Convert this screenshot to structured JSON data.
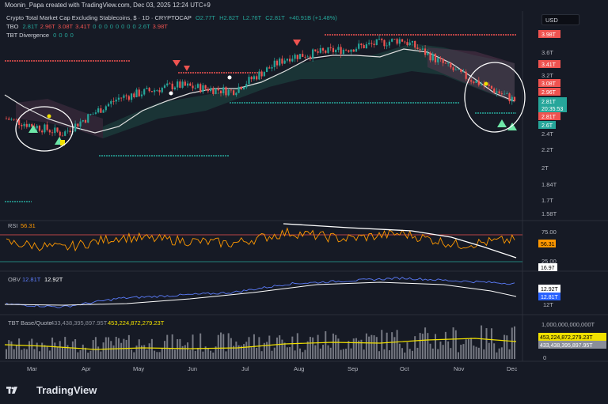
{
  "header": {
    "text": "Moonin_Papa created with TradingView.com, Dec 03, 2025 12:24 UTC+9"
  },
  "legend": {
    "title": "Crypto Total Market Cap Excluding Stablecoins, $ · 1D · CRYPTOCAP",
    "ohlc": [
      "O2.77T",
      "H2.82T",
      "L2.76T",
      "C2.81T"
    ],
    "change": "+40.91B (+1.48%)",
    "tbo_label": "TBO",
    "tbo_values": [
      "2.81T",
      "2.96T",
      "3.08T",
      "3.41T",
      "0",
      "0",
      "0",
      "0",
      "0",
      "0",
      "0",
      "0",
      "2.6T",
      "3.98T"
    ],
    "tbt_label": "TBT Divergence",
    "tbt_values": [
      "0",
      "0",
      "0",
      "0"
    ]
  },
  "currency": "USD",
  "price_axis": {
    "ticks": [
      "3.98T",
      "3.6T",
      "3.41T",
      "3.2T",
      "3.08T",
      "2.96T",
      "2.81T",
      "20:35:53",
      "2.81T",
      "2.6T",
      "2.4T",
      "2.2T",
      "2T",
      "1.84T",
      "1.7T",
      "1.58T"
    ]
  },
  "rsi": {
    "label": "RSI",
    "value": "56.31",
    "ticks": [
      "75.00",
      "56.31",
      "25.00",
      "16.97"
    ]
  },
  "obv": {
    "label": "OBV",
    "v1": "12.81T",
    "v2": "12.92T",
    "ticks": [
      "12.92T",
      "12.81T",
      "12T"
    ]
  },
  "tbt": {
    "label": "TBT Base/Quote",
    "v1": "433,438,395,897.95T",
    "v2": "453,224,872,279.23T",
    "ticks": [
      "1,000,000,000,000T",
      "453,224,872,279.23T",
      "433,438,395,897.95T",
      "0"
    ]
  },
  "months": [
    "Mar",
    "Apr",
    "May",
    "Jun",
    "Jul",
    "Aug",
    "Sep",
    "Oct",
    "Nov",
    "Dec"
  ],
  "brand": "TradingView",
  "colors": {
    "bg": "#161a25",
    "up": "#26a69a",
    "down": "#ef5350",
    "ma": "#ffffff",
    "rsi": "#ff9800",
    "obv": "#5b7cfa",
    "vol_ma": "#f0e000"
  },
  "chart_data": [
    {
      "type": "line",
      "name": "price",
      "title": "Crypto Total Market Cap Excluding Stablecoins",
      "ylabel": "",
      "ylim": [
        1.5,
        4.1
      ],
      "x": [
        "Mar",
        "Apr",
        "May",
        "Jun",
        "Jul",
        "Aug",
        "Sep",
        "Oct",
        "Nov",
        "Dec"
      ],
      "values": [
        2.55,
        2.35,
        2.85,
        3.05,
        2.95,
        3.55,
        3.7,
        3.9,
        3.25,
        2.81
      ]
    },
    {
      "type": "line",
      "name": "rsi",
      "ylim": [
        0,
        100
      ],
      "values": [
        50,
        38,
        62,
        55,
        48,
        72,
        58,
        70,
        45,
        56.31
      ]
    },
    {
      "type": "line",
      "name": "obv",
      "values": [
        12.1,
        12.0,
        12.3,
        12.4,
        12.5,
        12.8,
        12.9,
        13.0,
        12.9,
        12.81
      ]
    }
  ]
}
